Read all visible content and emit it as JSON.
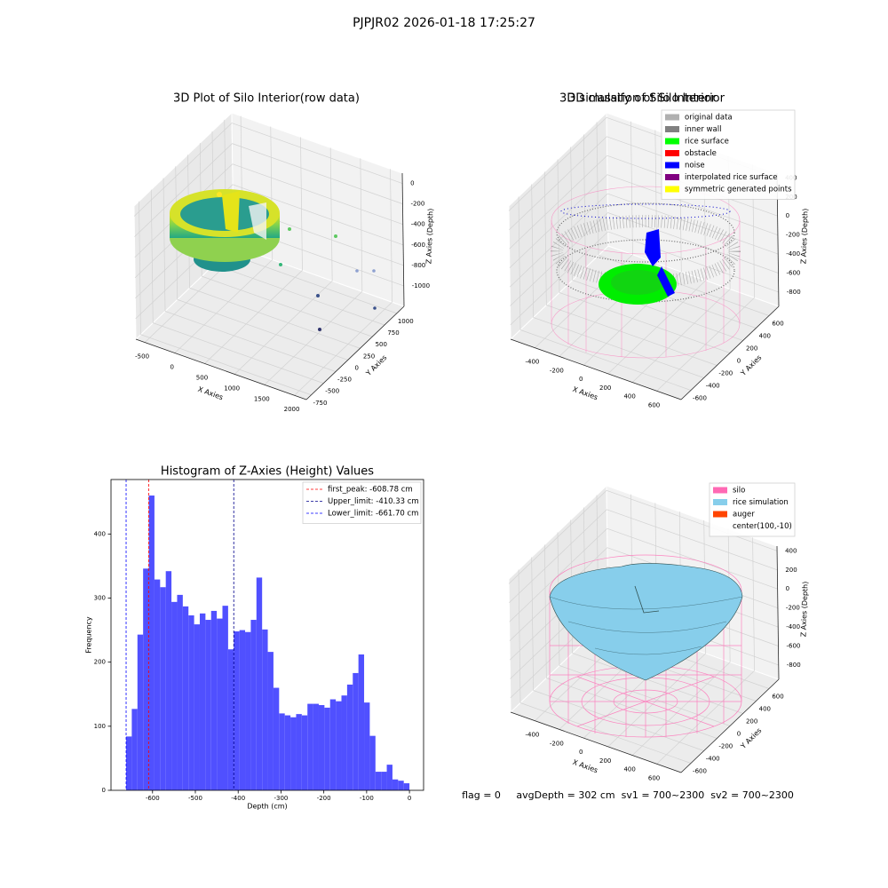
{
  "title": "PJPJR02 2026-01-18 17:25:27",
  "footer": "flag = 0     avgDepth = 302 cm  sv1 = 700~2300  sv2 = 700~2300",
  "chart_data": [
    {
      "type": "scatter3d",
      "title": "3D Plot of Silo Interior(row data)",
      "xlabel": "X Axies",
      "ylabel": "Y Axies",
      "zlabel": "Z Axies (Depth)",
      "xlim": [
        -650,
        2200
      ],
      "xticks": [
        -500,
        0,
        500,
        1000,
        1500,
        2000
      ],
      "ylim": [
        -850,
        1150
      ],
      "yticks": [
        -750,
        -500,
        -250,
        0,
        250,
        500,
        750,
        1000
      ],
      "zlim": [
        -1200,
        100
      ],
      "zticks": [
        -1000,
        -800,
        -600,
        -400,
        -200,
        0
      ],
      "grid": true
    },
    {
      "type": "scatter3d",
      "title": "3D classify of Silo Interior",
      "xlabel": "X Axies",
      "ylabel": "Y Axies",
      "zlabel": "Z Axies (Depth)",
      "xlim": [
        -600,
        800
      ],
      "xticks": [
        -400,
        -200,
        0,
        200,
        400,
        600
      ],
      "ylim": [
        -750,
        750
      ],
      "yticks": [
        -600,
        -400,
        -200,
        0,
        200,
        400,
        600
      ],
      "zlim": [
        -950,
        450
      ],
      "zticks": [
        -800,
        -600,
        -400,
        -200,
        0,
        200,
        400
      ],
      "grid": true,
      "legend_loc": "upper right",
      "legend": [
        {
          "name": "original data",
          "color": "#b0b0b0"
        },
        {
          "name": "inner wall",
          "color": "#808080"
        },
        {
          "name": "rice surface",
          "color": "#00ff00"
        },
        {
          "name": "obstacle",
          "color": "#ff0000"
        },
        {
          "name": "noise",
          "color": "#0000ff"
        },
        {
          "name": "interpolated rice surface",
          "color": "#800080"
        },
        {
          "name": "symmetric generated points",
          "color": "#ffff00"
        }
      ]
    },
    {
      "type": "histogram",
      "title": "Histogram of Z-Axies (Height) Values",
      "xlabel": "Depth (cm)",
      "ylabel": "Frequency",
      "color": "#5050ff",
      "bins": [
        -661.7,
        -648.47,
        -635.23,
        -622.0,
        -608.76,
        -595.53,
        -582.3,
        -569.06,
        -555.83,
        -542.59,
        -529.36,
        -516.13,
        -502.89,
        -489.66,
        -476.42,
        -463.19,
        -449.96,
        -436.72,
        -423.49,
        -410.25,
        -397.02,
        -383.79,
        -370.55,
        -357.32,
        -344.08,
        -330.85,
        -317.62,
        -304.38,
        -291.15,
        -277.91,
        -264.68,
        -251.45,
        -238.21,
        -224.98,
        -211.74,
        -198.51,
        -185.28,
        -172.04,
        -158.81,
        -145.57,
        -132.34,
        -119.11,
        -105.87,
        -92.64,
        -79.4,
        -66.17,
        -52.94,
        -39.7,
        -26.47,
        -13.23,
        0
      ],
      "values": [
        84,
        127,
        243,
        346,
        460,
        329,
        317,
        342,
        294,
        305,
        287,
        273,
        259,
        276,
        266,
        280,
        268,
        288,
        220,
        248,
        250,
        247,
        266,
        332,
        251,
        216,
        160,
        120,
        117,
        114,
        119,
        117,
        135,
        135,
        133,
        129,
        142,
        139,
        148,
        165,
        183,
        212,
        137,
        85,
        29,
        29,
        40,
        17,
        15,
        11
      ],
      "xlim": [
        -697,
        33
      ],
      "xticks": [
        -600,
        -500,
        -400,
        -300,
        -200,
        -100,
        0
      ],
      "ylim": [
        0,
        485
      ],
      "yticks": [
        0,
        100,
        200,
        300,
        400
      ],
      "legend_loc": "upper right",
      "vlines": [
        {
          "label": "first_peak: -608.78 cm",
          "value": -608.78,
          "color": "#ff0000"
        },
        {
          "label": "Upper_limit: -410.33 cm",
          "value": -410.33,
          "color": "#00008b"
        },
        {
          "label": "Lower_limit: -661.70 cm",
          "value": -661.7,
          "color": "#0000ff"
        }
      ]
    },
    {
      "type": "surface3d",
      "title": "3D simulation of Silo Interior",
      "xlabel": "X Axies",
      "ylabel": "Y Axies",
      "zlabel": "Z Axies (Depth)",
      "xlim": [
        -600,
        800
      ],
      "xticks": [
        -400,
        -200,
        0,
        200,
        400,
        600
      ],
      "ylim": [
        -750,
        750
      ],
      "yticks": [
        -600,
        -400,
        -200,
        0,
        200,
        400,
        600
      ],
      "zlim": [
        -950,
        450
      ],
      "zticks": [
        -800,
        -600,
        -400,
        -200,
        0,
        200,
        400
      ],
      "grid": true,
      "legend_loc": "upper right",
      "legend": [
        {
          "name": "silo",
          "color": "#ff69b4"
        },
        {
          "name": "rice simulation",
          "color": "#87ceeb"
        },
        {
          "name": "auger",
          "color": "#ff4500"
        },
        {
          "name": "center(100,-10)"
        }
      ]
    }
  ]
}
